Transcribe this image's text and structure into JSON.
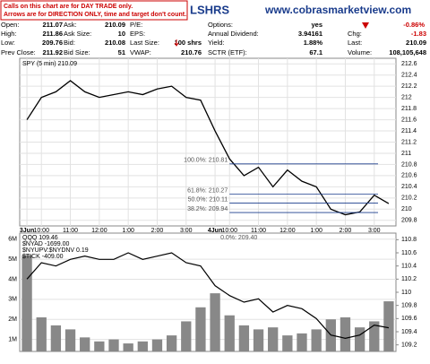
{
  "header": {
    "notice": [
      "Calls on this chart are for DAY TRADE only.",
      "Arrows are for DIRECTION ONLY, time and target don't count."
    ],
    "symbol_title": "LSHRS",
    "site": "www.cobrasmarketview.com",
    "columns": [
      [
        {
          "label": "Open:",
          "value": "211.07"
        },
        {
          "label": "High:",
          "value": "211.86"
        },
        {
          "label": "Low:",
          "value": "209.76"
        },
        {
          "label": "Prev Close:",
          "value": "211.92"
        }
      ],
      [
        {
          "label": "Ask:",
          "value": "210.09"
        },
        {
          "label": "Ask Size:",
          "value": "10"
        },
        {
          "label": "Bid:",
          "value": "210.08"
        },
        {
          "label": "Bid Size:",
          "value": "51"
        }
      ],
      [
        {
          "label": "P/E:"
        },
        {
          "label": "EPS:"
        },
        {
          "label": "Last Size:",
          "value": "100 shrs"
        },
        {
          "label": "VWAP:",
          "value": "210.76"
        }
      ],
      [
        {
          "label": "Options:",
          "value": "yes"
        },
        {
          "label": "Annual Dividend:",
          "value": "3.94161"
        },
        {
          "label": "Yield:",
          "value": "1.88%"
        },
        {
          "label": "SCTR (ETF):",
          "value": "67.1"
        }
      ],
      [
        {
          "value": "-0.86%"
        },
        {
          "label": "Chg:",
          "value": "-1.83"
        },
        {
          "label": "Last:",
          "value": "210.09"
        },
        {
          "label": "Volume:",
          "value": "108,105,648"
        }
      ]
    ]
  },
  "chart_data": [
    {
      "type": "line",
      "title": "SPY (5 min) 210.09",
      "categories": [
        "3Jun",
        "10:00",
        null,
        "11:00",
        null,
        "12:00",
        null,
        "1:00",
        null,
        "2:00",
        null,
        "3:00",
        null,
        "4Jun",
        "10:00",
        null,
        "11:00",
        null,
        "12:00",
        null,
        "1:00",
        null,
        "2:00",
        null,
        "3:00",
        null
      ],
      "series": [
        {
          "color": "#000000",
          "values": [
            211.6,
            212.0,
            212.1,
            212.3,
            212.1,
            212.0,
            212.05,
            212.1,
            212.05,
            212.15,
            212.2,
            212.0,
            211.95,
            211.4,
            210.9,
            210.6,
            210.75,
            210.4,
            210.7,
            210.5,
            210.4,
            210.0,
            209.9,
            209.95,
            210.25,
            210.1
          ]
        }
      ],
      "levels": [
        {
          "label": "100.0%: 210.81",
          "value": 210.81
        },
        {
          "label": "61.8%: 210.27",
          "value": 210.27
        },
        {
          "label": "50.0%: 210.11",
          "value": 210.11
        },
        {
          "label": "38.2%: 209.94",
          "value": 209.94
        }
      ],
      "ylim": [
        209.7,
        212.7
      ],
      "yticks": [
        209.8,
        210.0,
        210.2,
        210.4,
        210.6,
        210.8,
        211.0,
        211.2,
        211.4,
        211.6,
        211.8,
        212.0,
        212.2,
        212.4,
        212.6
      ],
      "grid": true
    },
    {
      "type": "bar-line",
      "legend": [
        "QQQ 109.46",
        "$NYAD -1699.00",
        "$NYUPV:$NYDNV 0.19",
        "$TICK -409.00"
      ],
      "annotation": "0.0%: 209.40",
      "series": [
        {
          "color": "#888888",
          "values": [
            5200000,
            2100000,
            1700000,
            1500000,
            1100000,
            900000,
            1000000,
            800000,
            900000,
            1000000,
            1200000,
            1900000,
            2600000,
            3300000,
            2200000,
            1700000,
            1500000,
            1600000,
            1200000,
            1300000,
            1500000,
            2000000,
            2100000,
            1600000,
            1900000,
            2900000
          ]
        },
        {
          "color": "#000000",
          "axis": "y2",
          "values": [
            110.2,
            110.45,
            110.4,
            110.5,
            110.55,
            110.5,
            110.5,
            110.6,
            110.5,
            110.55,
            110.6,
            110.45,
            110.4,
            110.1,
            109.95,
            109.85,
            109.9,
            109.7,
            109.8,
            109.75,
            109.6,
            109.35,
            109.3,
            109.35,
            109.5,
            109.46
          ]
        }
      ],
      "ylim": [
        400000,
        6300000
      ],
      "yticks": [
        {
          "value": 1000000,
          "label": "1M"
        },
        {
          "value": 2000000,
          "label": "2M"
        },
        {
          "value": 3000000,
          "label": "3M"
        },
        {
          "value": 4000000,
          "label": "4M"
        },
        {
          "value": 5000000,
          "label": "5M"
        },
        {
          "value": 6000000,
          "label": "6M"
        }
      ],
      "y2lim": [
        109.1,
        110.9
      ],
      "y2ticks": [
        109.2,
        109.4,
        109.6,
        109.8,
        110.0,
        110.2,
        110.4,
        110.6,
        110.8
      ],
      "grid": true
    }
  ]
}
